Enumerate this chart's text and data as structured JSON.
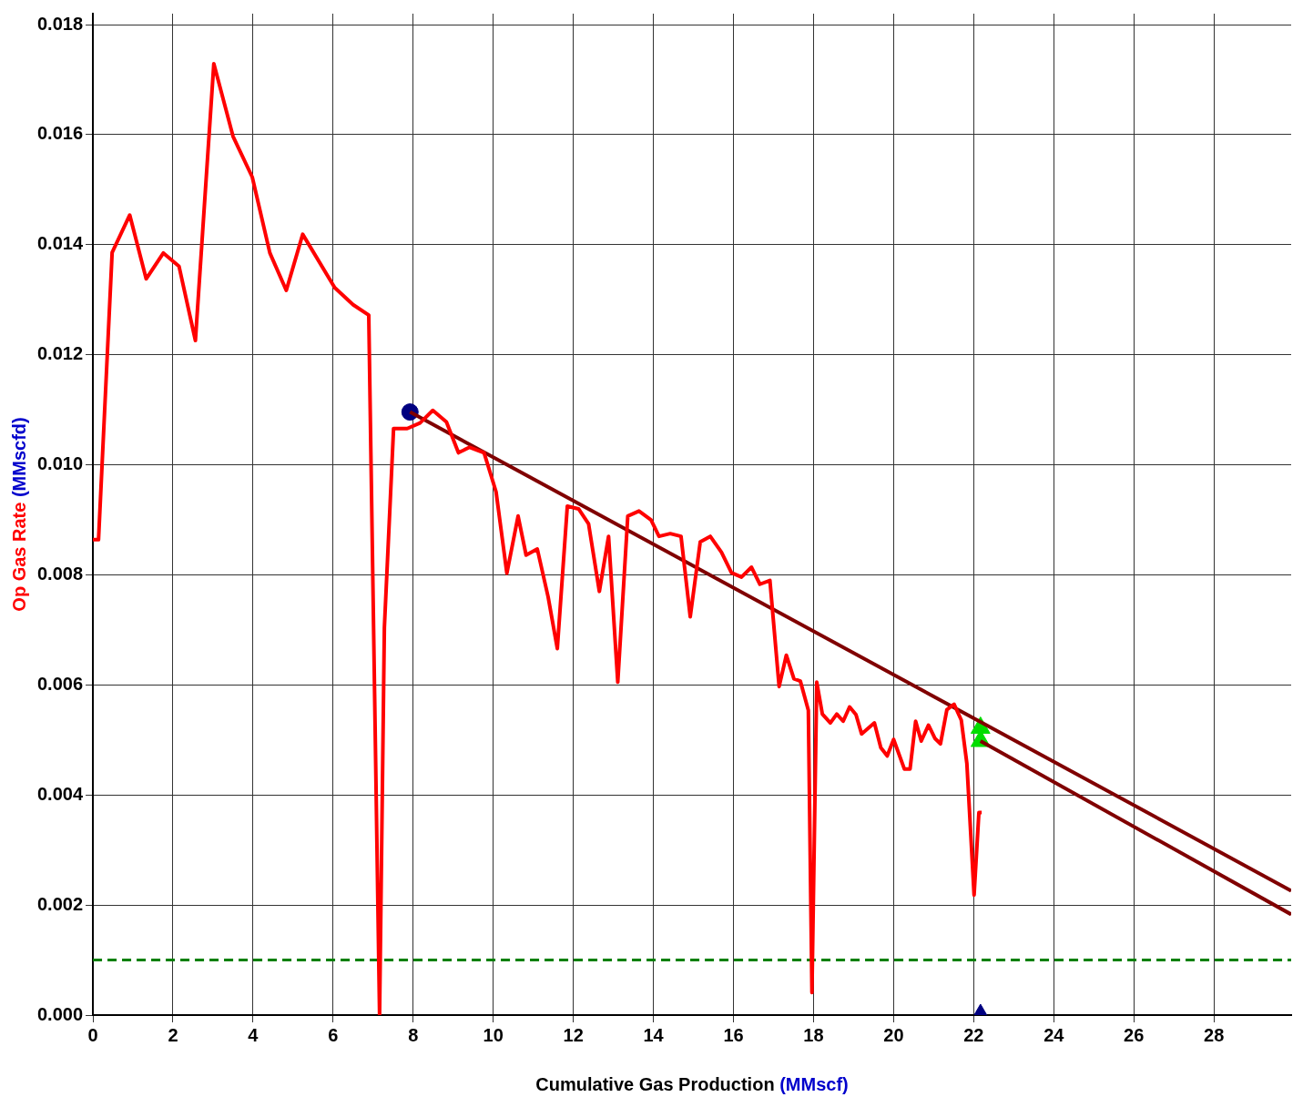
{
  "chart_data": {
    "type": "line",
    "xlabel": "Cumulative Gas Production (MMscf)",
    "ylabel": "Op Gas Rate (MMscfd)",
    "xlim": [
      0,
      29.93
    ],
    "ylim": [
      0,
      0.0182
    ],
    "xticks": [
      0,
      2,
      4,
      6,
      8,
      10,
      12,
      14,
      16,
      18,
      20,
      22,
      24,
      26,
      28
    ],
    "yticks": [
      {
        "value": 0,
        "label": "0.000"
      },
      {
        "value": 0.002,
        "label": "0.002"
      },
      {
        "value": 0.004,
        "label": "0.004"
      },
      {
        "value": 0.006,
        "label": "0.006"
      },
      {
        "value": 0.008,
        "label": "0.008"
      },
      {
        "value": 0.01,
        "label": "0.010"
      },
      {
        "value": 0.012,
        "label": "0.012"
      },
      {
        "value": 0.014,
        "label": "0.014"
      },
      {
        "value": 0.016,
        "label": "0.016"
      },
      {
        "value": 0.018,
        "label": "0.018"
      }
    ],
    "grid": true,
    "legend": false,
    "ref_lines": [
      {
        "axis": "y",
        "value": 0.001,
        "color": "#008000",
        "line_style": "dashed"
      }
    ],
    "series": [
      {
        "color": "#ff0000",
        "marker": "none",
        "line_style": "solid",
        "x": [
          0,
          0.14,
          0.48,
          0.92,
          1.33,
          1.76,
          2.15,
          2.56,
          3.02,
          3.5,
          3.98,
          4.42,
          4.83,
          5.24,
          6.04,
          6.5,
          6.89,
          7.16,
          7.28,
          7.51,
          7.85,
          8.17,
          8.49,
          8.83,
          9.13,
          9.41,
          9.77,
          10.07,
          10.34,
          10.62,
          10.82,
          11.1,
          11.37,
          11.6,
          11.85,
          12.13,
          12.38,
          12.65,
          12.88,
          13.11,
          13.36,
          13.64,
          13.94,
          14.14,
          14.42,
          14.69,
          14.92,
          15.17,
          15.42,
          15.7,
          15.95,
          16.2,
          16.45,
          16.66,
          16.91,
          17.14,
          17.32,
          17.51,
          17.67,
          17.87,
          17.96,
          18.08,
          18.22,
          18.42,
          18.58,
          18.74,
          18.9,
          19.06,
          19.2,
          19.52,
          19.68,
          19.84,
          20.0,
          20.27,
          20.41,
          20.55,
          20.69,
          20.87,
          21.03,
          21.17,
          21.33,
          21.51,
          21.69,
          21.83,
          22.01,
          22.13,
          22.2
        ],
        "values": [
          0.00864,
          0.00864,
          0.01386,
          0.01454,
          0.01338,
          0.01385,
          0.01361,
          0.01226,
          0.01729,
          0.01597,
          0.01523,
          0.01385,
          0.01317,
          0.01419,
          0.01322,
          0.01291,
          0.01272,
          0.0,
          0.00704,
          0.01066,
          0.01066,
          0.01076,
          0.01099,
          0.01078,
          0.01022,
          0.01032,
          0.01022,
          0.00951,
          0.00803,
          0.00907,
          0.00836,
          0.00847,
          0.0076,
          0.00666,
          0.00925,
          0.0092,
          0.00893,
          0.0077,
          0.0087,
          0.00605,
          0.00907,
          0.00916,
          0.009,
          0.0087,
          0.00875,
          0.0087,
          0.00724,
          0.0086,
          0.0087,
          0.00841,
          0.00804,
          0.00796,
          0.00814,
          0.00783,
          0.0079,
          0.00597,
          0.00654,
          0.00611,
          0.00607,
          0.00554,
          0.00041,
          0.00605,
          0.00547,
          0.00531,
          0.00547,
          0.00534,
          0.0056,
          0.00546,
          0.00511,
          0.00531,
          0.00486,
          0.00471,
          0.00501,
          0.00447,
          0.00447,
          0.00534,
          0.00498,
          0.00527,
          0.00503,
          0.00493,
          0.00555,
          0.00565,
          0.00536,
          0.00457,
          0.00218,
          0.00368,
          0.00368
        ]
      },
      {
        "color": "#800000",
        "marker": "none",
        "line_style": "solid",
        "x": [
          7.92,
          29.93
        ],
        "values": [
          0.01096,
          0.00226
        ]
      },
      {
        "color": "#800000",
        "marker": "none",
        "line_style": "solid",
        "x": [
          22.17,
          29.93
        ],
        "values": [
          0.00498,
          0.00183
        ]
      },
      {
        "type": "scatter",
        "color": "#000080",
        "marker": "circle",
        "x": [
          7.92
        ],
        "values": [
          0.01096
        ]
      },
      {
        "type": "scatter",
        "color": "#00dd00",
        "marker": "triangle",
        "x": [
          22.17,
          22.17
        ],
        "values": [
          0.00522,
          0.00498
        ]
      },
      {
        "type": "scatter",
        "color": "#000080",
        "marker": "triangle",
        "x": [
          22.17
        ],
        "values": [
          0
        ]
      }
    ]
  }
}
